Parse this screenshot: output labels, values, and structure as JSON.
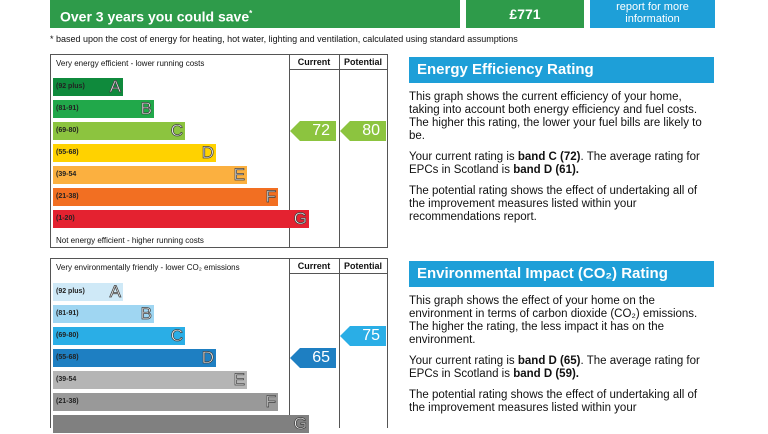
{
  "savings": {
    "label": "Over 3 years you could save",
    "marker": "*",
    "value": "£771",
    "report_link": "report for more information"
  },
  "footnote": "* based upon the cost of energy for heating, hot water, lighting and ventilation, calculated using standard assumptions",
  "column_headers": {
    "current": "Current",
    "potential": "Potential"
  },
  "energy_chart": {
    "top_label": "Very energy efficient - lower running costs",
    "bottom_label": "Not energy efficient - higher running costs",
    "bands": [
      {
        "range": "(92 plus)",
        "letter": "A",
        "color": "#0f8a3c"
      },
      {
        "range": "(81-91)",
        "letter": "B",
        "color": "#21a84a"
      },
      {
        "range": "(69-80)",
        "letter": "C",
        "color": "#8cc43f"
      },
      {
        "range": "(55-68)",
        "letter": "D",
        "color": "#ffd200"
      },
      {
        "range": "(39-54",
        "letter": "E",
        "color": "#fbb040"
      },
      {
        "range": "(21-38)",
        "letter": "F",
        "color": "#f26f22"
      },
      {
        "range": "(1-20)",
        "letter": "G",
        "color": "#e42230"
      }
    ],
    "current": {
      "value": "72",
      "band_index": 2,
      "color": "#8cc43f"
    },
    "potential": {
      "value": "80",
      "band_index": 2,
      "color": "#8cc43f"
    }
  },
  "env_chart": {
    "top_label": "Very environmentally friendly - lower CO₂ emissions",
    "bands": [
      {
        "range": "(92 plus)",
        "letter": "A",
        "color": "#cfe9f7"
      },
      {
        "range": "(81-91)",
        "letter": "B",
        "color": "#9fd6f2"
      },
      {
        "range": "(69-80)",
        "letter": "C",
        "color": "#2aaee6"
      },
      {
        "range": "(55-68)",
        "letter": "D",
        "color": "#1e7fc2"
      },
      {
        "range": "(39-54",
        "letter": "E",
        "color": "#b5b5b5"
      },
      {
        "range": "(21-38)",
        "letter": "F",
        "color": "#999999"
      },
      {
        "range": "",
        "letter": "G",
        "color": "#808080"
      }
    ],
    "current": {
      "value": "65",
      "band_index": 3,
      "color": "#1e7fc2"
    },
    "potential": {
      "value": "75",
      "band_index": 2,
      "color": "#2aaee6"
    }
  },
  "energy_text": {
    "title": "Energy Efficiency Rating",
    "p1": "This graph shows the current efficiency of your home, taking into account both energy efficiency and fuel costs. The higher this rating, the lower your fuel bills are likely to be.",
    "p2_a": "Your current rating is ",
    "p2_b": "band C (72)",
    "p2_c": ". The average rating for EPCs in Scotland is ",
    "p2_d": "band D (61).",
    "p3": "The potential rating shows the effect of undertaking all of the improvement measures listed within your recommendations report."
  },
  "env_text": {
    "title": "Environmental Impact (CO₂) Rating",
    "p1": "This graph shows the effect of your home on the environment in terms of carbon dioxide (CO₂) emissions. The higher the rating, the less impact it has on the environment.",
    "p2_a": "Your current rating is ",
    "p2_b": "band D (65)",
    "p2_c": ". The average rating for EPCs in Scotland is ",
    "p2_d": "band D (59).",
    "p3": "The potential rating shows the effect of undertaking all of the improvement measures listed within your"
  }
}
